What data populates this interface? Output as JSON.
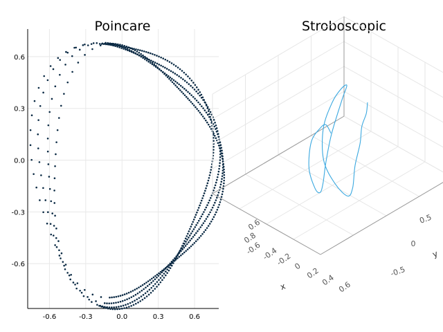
{
  "chart_data": [
    {
      "type": "scatter",
      "title": "Poincare",
      "xlim": [
        -0.78,
        0.8
      ],
      "ylim": [
        -0.86,
        0.76
      ],
      "xticks": [
        "-0.6",
        "-0.3",
        "0.0",
        "0.3",
        "0.6"
      ],
      "yticks": [
        "0.6",
        "0.3",
        "0.0",
        "-0.3",
        "-0.6"
      ],
      "grid": true,
      "legend": "none",
      "marker_color": "#0b2a44",
      "series": [
        {
          "rings": [
            {
              "cx": 0.0,
              "cy": -0.04,
              "rx": 0.74,
              "ry": 0.76,
              "phase": 0.0
            },
            {
              "cx": 0.03,
              "cy": -0.05,
              "rx": 0.74,
              "ry": 0.74,
              "phase": 0.6
            },
            {
              "cx": 0.06,
              "cy": -0.06,
              "rx": 0.72,
              "ry": 0.72,
              "phase": 1.2
            },
            {
              "cx": 0.09,
              "cy": -0.07,
              "rx": 0.7,
              "ry": 0.7,
              "phase": 1.8
            }
          ]
        }
      ]
    },
    {
      "type": "line",
      "title": "Stroboscopic",
      "projection": "3d",
      "xlabel": "x",
      "ylabel": "y",
      "zlabel": "",
      "xticks": [
        "-0.6",
        "-0.4",
        "-0.2",
        "0",
        "0.2",
        "0.4",
        "0.6"
      ],
      "yticks": [
        "-0.5",
        "0",
        "0.5"
      ],
      "zticks_partial": [
        "0.6",
        "0.8"
      ],
      "line_color": "#3aa8e0",
      "grid": true,
      "points": [
        [
          -0.2,
          0.7,
          0.6
        ],
        [
          -0.1,
          0.6,
          0.55
        ],
        [
          0.0,
          0.45,
          0.5
        ],
        [
          0.15,
          0.3,
          0.42
        ],
        [
          0.3,
          0.1,
          0.3
        ],
        [
          0.5,
          -0.1,
          0.2
        ],
        [
          0.65,
          -0.3,
          0.25
        ],
        [
          0.6,
          -0.45,
          0.45
        ],
        [
          0.45,
          -0.5,
          0.7
        ],
        [
          0.2,
          -0.3,
          0.9
        ],
        [
          0.0,
          0.0,
          1.0
        ],
        [
          -0.2,
          0.3,
          0.95
        ],
        [
          -0.4,
          0.55,
          0.8
        ],
        [
          -0.55,
          0.6,
          0.55
        ],
        [
          -0.5,
          0.4,
          0.25
        ],
        [
          -0.3,
          0.15,
          0.1
        ],
        [
          -0.05,
          -0.1,
          0.05
        ],
        [
          0.2,
          -0.35,
          0.15
        ],
        [
          0.35,
          -0.55,
          0.35
        ],
        [
          0.3,
          -0.6,
          0.6
        ],
        [
          0.1,
          -0.4,
          0.75
        ],
        [
          -0.1,
          -0.1,
          0.7
        ],
        [
          -0.3,
          0.15,
          0.55
        ],
        [
          -0.45,
          0.35,
          0.3
        ]
      ]
    }
  ]
}
